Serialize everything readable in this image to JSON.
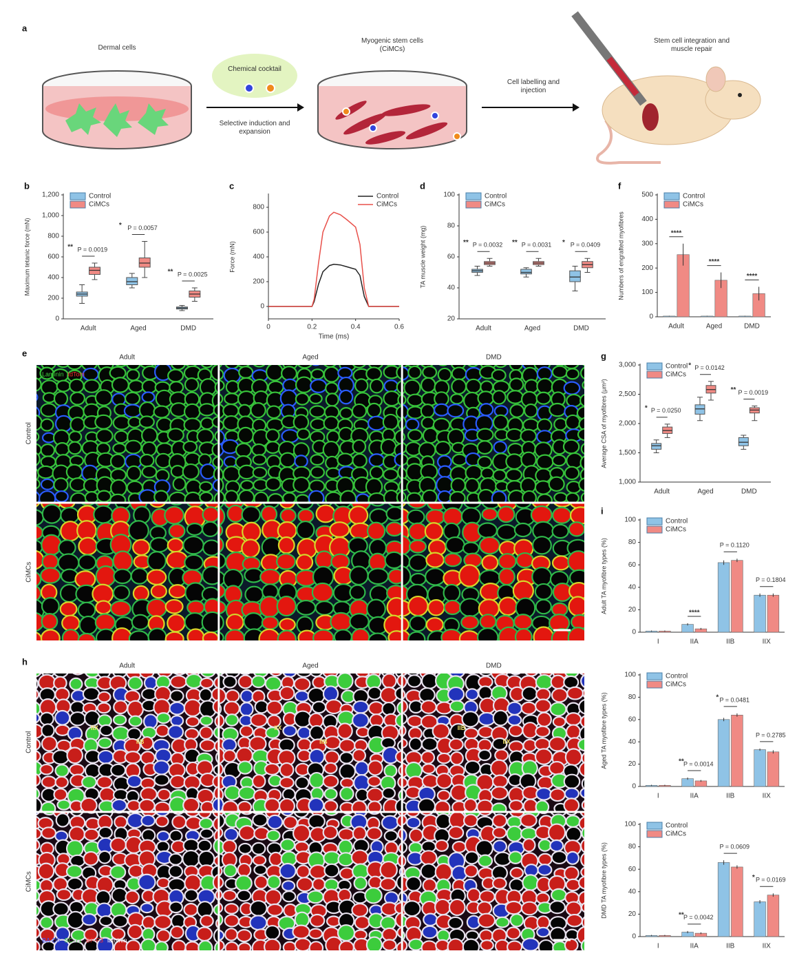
{
  "diagram": {
    "panel": "a",
    "steps": [
      "Dermal cells",
      "Myogenic stem cells (CiMCs)",
      "Stem cell integration and muscle repair"
    ],
    "cocktail": "Chemical cocktail",
    "arrows": [
      "Selective induction and expansion",
      "Cell labelling and injection"
    ]
  },
  "chart_data": [
    {
      "panel": "b",
      "type": "box",
      "ylabel": "Maximum tetanic force (mN)",
      "categories": [
        "Adult",
        "Aged",
        "DMD"
      ],
      "ylim": [
        0,
        1200
      ],
      "yticks": [
        0,
        200,
        400,
        600,
        800,
        {
          "value": 1000,
          "label": "1,000"
        },
        {
          "value": 1200,
          "label": "1,200"
        }
      ],
      "legend": "top-left",
      "series": [
        {
          "name": "Control",
          "color": "#8fc3e6",
          "low": [
            150,
            300,
            80
          ],
          "q1": [
            220,
            330,
            95
          ],
          "median": [
            240,
            360,
            105
          ],
          "q3": [
            260,
            400,
            115
          ],
          "high": [
            330,
            440,
            130
          ]
        },
        {
          "name": "CiMCs",
          "color": "#f08a84",
          "low": [
            380,
            400,
            170
          ],
          "q1": [
            430,
            500,
            210
          ],
          "median": [
            470,
            540,
            240
          ],
          "q3": [
            500,
            590,
            270
          ],
          "high": [
            540,
            750,
            300
          ]
        }
      ],
      "annotations": [
        {
          "stars": "**",
          "label": "P = 0.0019"
        },
        {
          "stars": "*",
          "label": "P = 0.0057"
        },
        {
          "stars": "**",
          "label": "P = 0.0025"
        }
      ]
    },
    {
      "panel": "c",
      "type": "line",
      "xlabel": "Time (ms)",
      "ylabel": "Force (mN)",
      "x": [
        0,
        0.2,
        0.21,
        0.23,
        0.25,
        0.28,
        0.3,
        0.33,
        0.36,
        0.4,
        0.42,
        0.44,
        0.46,
        0.6
      ],
      "xlim": [
        0,
        0.6
      ],
      "xticks": [
        0,
        0.2,
        0.4,
        0.6
      ],
      "ylim": [
        -100,
        900
      ],
      "yticks": [
        0,
        200,
        400,
        600,
        800
      ],
      "legend": "top-right",
      "series": [
        {
          "name": "Control",
          "color": "#222222",
          "values": [
            0,
            0,
            40,
            180,
            280,
            330,
            340,
            335,
            320,
            300,
            250,
            80,
            0,
            0
          ]
        },
        {
          "name": "CiMCs",
          "color": "#e8504a",
          "values": [
            0,
            0,
            60,
            350,
            600,
            730,
            760,
            740,
            700,
            640,
            500,
            150,
            0,
            0
          ]
        }
      ]
    },
    {
      "panel": "d",
      "type": "box",
      "ylabel": "TA muscle weight (mg)",
      "categories": [
        "Adult",
        "Aged",
        "DMD"
      ],
      "ylim": [
        20,
        100
      ],
      "yticks": [
        20,
        40,
        60,
        80,
        100
      ],
      "legend": "top-left",
      "series": [
        {
          "name": "Control",
          "color": "#8fc3e6",
          "low": [
            48,
            47,
            38
          ],
          "q1": [
            50,
            49,
            44
          ],
          "median": [
            51,
            50,
            47
          ],
          "q3": [
            52,
            52,
            51
          ],
          "high": [
            54,
            53,
            54
          ]
        },
        {
          "name": "CiMCs",
          "color": "#f08a84",
          "low": [
            54,
            54,
            50
          ],
          "q1": [
            55,
            55,
            53
          ],
          "median": [
            56,
            56,
            55
          ],
          "q3": [
            57,
            57,
            57
          ],
          "high": [
            59,
            59,
            59
          ]
        }
      ],
      "annotations": [
        {
          "stars": "**",
          "label": "P = 0.0032"
        },
        {
          "stars": "**",
          "label": "P = 0.0031"
        },
        {
          "stars": "*",
          "label": "P = 0.0409"
        }
      ]
    },
    {
      "panel": "f",
      "type": "bar",
      "ylabel": "Numbers of engrafted myofibres",
      "categories": [
        "Adult",
        "Aged",
        "DMD"
      ],
      "ylim": [
        0,
        500
      ],
      "yticks": [
        0,
        100,
        200,
        300,
        400,
        500
      ],
      "legend": "top-left",
      "series": [
        {
          "name": "Control",
          "color": "#8fc3e6",
          "values": [
            3,
            3,
            3
          ],
          "errors": [
            1,
            1,
            1
          ]
        },
        {
          "name": "CiMCs",
          "color": "#f08a84",
          "values": [
            255,
            150,
            95
          ],
          "errors": [
            45,
            32,
            28
          ]
        }
      ],
      "annotations": [
        {
          "stars": "****"
        },
        {
          "stars": "****"
        },
        {
          "stars": "****"
        }
      ]
    },
    {
      "panel": "g",
      "type": "box",
      "ylabel": "Average CSA of myofibres (μm²)",
      "categories": [
        "Adult",
        "Aged",
        "DMD"
      ],
      "ylim": [
        1000,
        3000
      ],
      "yticks": [
        {
          "value": 1000,
          "label": "1,000"
        },
        {
          "value": 1500,
          "label": "1,500"
        },
        {
          "value": 2000,
          "label": "2,000"
        },
        {
          "value": 2500,
          "label": "2,500"
        },
        {
          "value": 3000,
          "label": "3,000"
        }
      ],
      "legend": "top-left",
      "series": [
        {
          "name": "Control",
          "color": "#8fc3e6",
          "low": [
            1500,
            2050,
            1560
          ],
          "q1": [
            1560,
            2160,
            1620
          ],
          "median": [
            1620,
            2250,
            1680
          ],
          "q3": [
            1660,
            2320,
            1760
          ],
          "high": [
            1720,
            2450,
            1800
          ]
        },
        {
          "name": "CiMCs",
          "color": "#f08a84",
          "low": [
            1760,
            2400,
            2050
          ],
          "q1": [
            1830,
            2520,
            2180
          ],
          "median": [
            1880,
            2580,
            2230
          ],
          "q3": [
            1940,
            2650,
            2270
          ],
          "high": [
            1990,
            2720,
            2300
          ]
        }
      ],
      "annotations": [
        {
          "stars": "*",
          "label": "P = 0.0250"
        },
        {
          "stars": "*",
          "label": "P = 0.0142"
        },
        {
          "stars": "**",
          "label": "P = 0.0019"
        }
      ]
    },
    {
      "panel": "i",
      "type": "bar",
      "ylabel": "Adult TA myofibre types (%)",
      "categories": [
        "I",
        "IIA",
        "IIB",
        "IIX"
      ],
      "ylim": [
        0,
        100
      ],
      "yticks": [
        0,
        20,
        40,
        60,
        80,
        100
      ],
      "legend": "top-left",
      "series": [
        {
          "name": "Control",
          "color": "#8fc3e6",
          "values": [
            1,
            7,
            62,
            33
          ],
          "errors": [
            0.5,
            1,
            2,
            1.5
          ]
        },
        {
          "name": "CiMCs",
          "color": "#f08a84",
          "values": [
            1,
            3,
            64,
            33
          ],
          "errors": [
            0.5,
            0.8,
            1.5,
            1.5
          ]
        }
      ],
      "annotations": [
        null,
        {
          "stars": "****"
        },
        {
          "label": "P = 0.1120"
        },
        {
          "label": "P = 0.1804"
        }
      ]
    },
    {
      "type": "bar",
      "ylabel": "Aged TA myofibre types (%)",
      "categories": [
        "I",
        "IIA",
        "IIB",
        "IIX"
      ],
      "ylim": [
        0,
        100
      ],
      "yticks": [
        0,
        20,
        40,
        60,
        80,
        100
      ],
      "legend": "top-left",
      "series": [
        {
          "name": "Control",
          "color": "#8fc3e6",
          "values": [
            1,
            7,
            60,
            33
          ],
          "errors": [
            0.5,
            1,
            1.5,
            1
          ]
        },
        {
          "name": "CiMCs",
          "color": "#f08a84",
          "values": [
            1,
            5,
            64,
            31
          ],
          "errors": [
            0.5,
            0.8,
            1.5,
            1.5
          ]
        }
      ],
      "annotations": [
        null,
        {
          "stars": "**",
          "label": "P = 0.0014"
        },
        {
          "stars": "*",
          "label": "P = 0.0481"
        },
        {
          "label": "P = 0.2785"
        }
      ]
    },
    {
      "type": "bar",
      "ylabel": "DMD TA myofibre types (%)",
      "categories": [
        "I",
        "IIA",
        "IIB",
        "IIX"
      ],
      "ylim": [
        0,
        100
      ],
      "yticks": [
        0,
        20,
        40,
        60,
        80,
        100
      ],
      "legend": "top-left",
      "series": [
        {
          "name": "Control",
          "color": "#8fc3e6",
          "values": [
            1,
            4,
            66,
            31
          ],
          "errors": [
            0.5,
            1,
            2,
            1.5
          ]
        },
        {
          "name": "CiMCs",
          "color": "#f08a84",
          "values": [
            1,
            3,
            62,
            37
          ],
          "errors": [
            0.5,
            0.8,
            1.5,
            1.5
          ]
        }
      ],
      "annotations": [
        null,
        {
          "stars": "**",
          "label": "P = 0.0042"
        },
        {
          "label": "P = 0.0609"
        },
        {
          "stars": "*",
          "label": "P = 0.0169"
        }
      ]
    }
  ],
  "micrographs": [
    {
      "panel": "e",
      "columns": [
        "Adult",
        "Aged",
        "DMD"
      ],
      "rows": [
        "Control",
        "CiMCs"
      ],
      "stain_legend": [
        {
          "text": "Laminin",
          "color": "#3fd23f"
        },
        {
          "text": "tdTom",
          "color": "#ff3030"
        }
      ]
    },
    {
      "panel": "h",
      "columns": [
        "Adult",
        "Aged",
        "DMD"
      ],
      "rows": [
        "Control",
        "CiMCs"
      ],
      "stain_legend": [
        {
          "text": "BA-D5",
          "color": "#3a50ff"
        },
        {
          "text": "SC-71",
          "color": "#3fd23f"
        },
        {
          "text": "BF-F3",
          "color": "#ff3030"
        },
        {
          "text": "laminin",
          "color": "#ffffff"
        }
      ],
      "fibre_labels": [
        [
          "IIX",
          "IIB"
        ],
        [
          "IIX",
          "IIB"
        ],
        [
          "IIB",
          "IIX"
        ]
      ]
    }
  ]
}
